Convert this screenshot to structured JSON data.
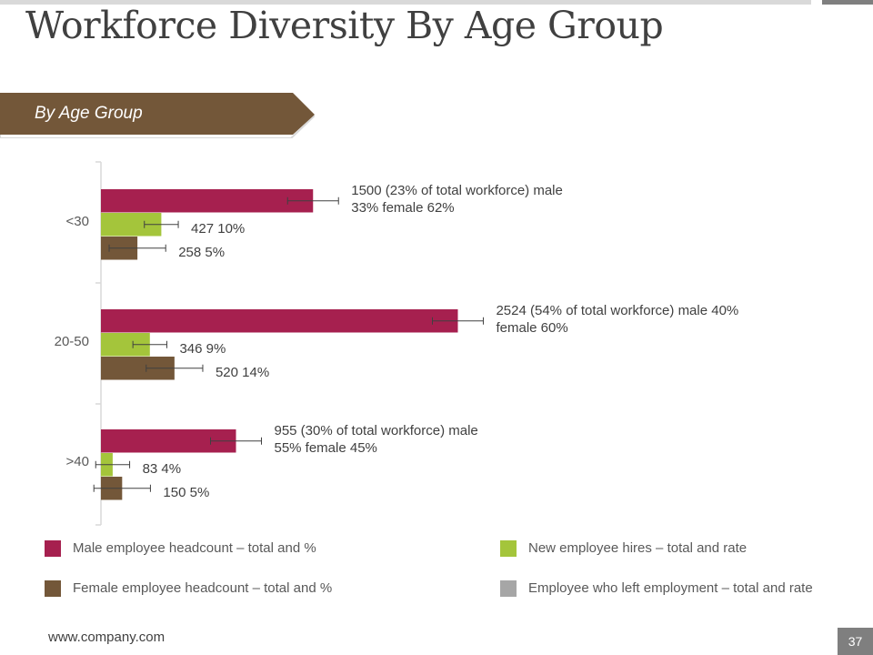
{
  "title": "Workforce Diversity By Age Group",
  "banner": {
    "label": "By Age Group"
  },
  "chart_data": {
    "type": "bar",
    "orientation": "horizontal",
    "categories": [
      "<30",
      "20-50",
      ">40"
    ],
    "series": [
      {
        "name": "Male employee headcount – total and %",
        "color": "#a6204f",
        "values": [
          1500,
          2524,
          955
        ],
        "error": [
          180,
          180,
          180
        ]
      },
      {
        "name": "New employee hires – total and rate",
        "color": "#a4c53b",
        "values": [
          427,
          346,
          83
        ],
        "error": [
          120,
          120,
          120
        ]
      },
      {
        "name": "Female employee headcount – total and %",
        "color": "#735739",
        "values": [
          258,
          520,
          150
        ],
        "error": [
          200,
          200,
          200
        ]
      }
    ],
    "data_labels": [
      [
        "1500 (23% of total workforce) male\n33% female 62%",
        "427 10%",
        "258 5%"
      ],
      [
        "2524 (54% of total workforce) male 40%\nfemale 60%",
        "346 9%",
        "520 14%"
      ],
      [
        "955 (30% of total workforce) male\n55% female 45%",
        "83 4%",
        "150 5%"
      ]
    ],
    "xlim": [
      0,
      5000
    ],
    "grid": false,
    "legend_position": "bottom"
  },
  "legend": [
    {
      "label": "Male employee headcount – total and %",
      "color": "#a6204f"
    },
    {
      "label": "New employee hires – total and rate",
      "color": "#a4c53b"
    },
    {
      "label": "Female employee headcount – total and %",
      "color": "#735739"
    },
    {
      "label": "Employee who left employment – total and rate",
      "color": "#a6a6a6"
    }
  ],
  "footer": {
    "url": "www.company.com",
    "page_number": "37"
  },
  "colors": {
    "banner": "#735739",
    "banner_edge": "#d9d9d9"
  }
}
